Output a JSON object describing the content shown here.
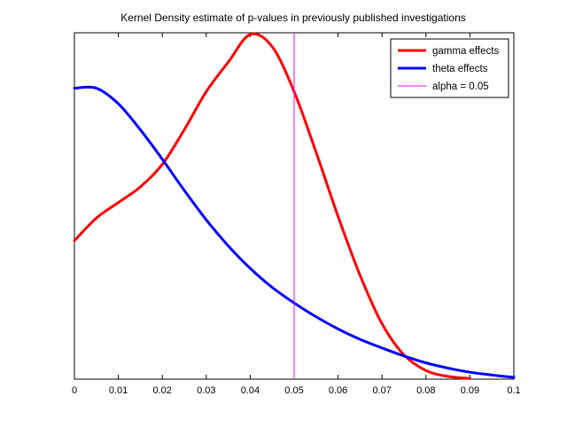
{
  "chart_data": {
    "type": "line",
    "title": "Kernel Density estimate of p-values in previously published investigations",
    "xlabel": "",
    "ylabel": "",
    "xlim": [
      0,
      0.1
    ],
    "ylim": [
      0,
      1
    ],
    "x_ticks": [
      "0",
      "0.01",
      "0.02",
      "0.03",
      "0.04",
      "0.05",
      "0.06",
      "0.07",
      "0.08",
      "0.09",
      "0.1"
    ],
    "grid": false,
    "legend_position": "top-right",
    "series": [
      {
        "name": "gamma effects",
        "color": "#ff0000",
        "x": [
          0,
          0.005,
          0.01,
          0.015,
          0.02,
          0.025,
          0.03,
          0.035,
          0.04,
          0.045,
          0.05,
          0.055,
          0.06,
          0.065,
          0.07,
          0.075,
          0.08,
          0.085,
          0.09
        ],
        "y": [
          0.4,
          0.465,
          0.51,
          0.555,
          0.62,
          0.72,
          0.83,
          0.915,
          0.995,
          0.96,
          0.83,
          0.655,
          0.47,
          0.3,
          0.16,
          0.07,
          0.025,
          0.008,
          0.002
        ]
      },
      {
        "name": "theta effects",
        "color": "#0000ff",
        "x": [
          0,
          0.005,
          0.01,
          0.015,
          0.02,
          0.025,
          0.03,
          0.035,
          0.04,
          0.045,
          0.05,
          0.055,
          0.06,
          0.065,
          0.07,
          0.075,
          0.08,
          0.085,
          0.09,
          0.095,
          0.1
        ],
        "y": [
          0.84,
          0.84,
          0.795,
          0.72,
          0.635,
          0.545,
          0.46,
          0.385,
          0.32,
          0.265,
          0.22,
          0.18,
          0.145,
          0.115,
          0.09,
          0.067,
          0.047,
          0.032,
          0.02,
          0.012,
          0.005
        ]
      },
      {
        "name": "alpha = 0.05",
        "color": "#ff00ff",
        "type": "vline",
        "x": 0.05
      }
    ]
  }
}
